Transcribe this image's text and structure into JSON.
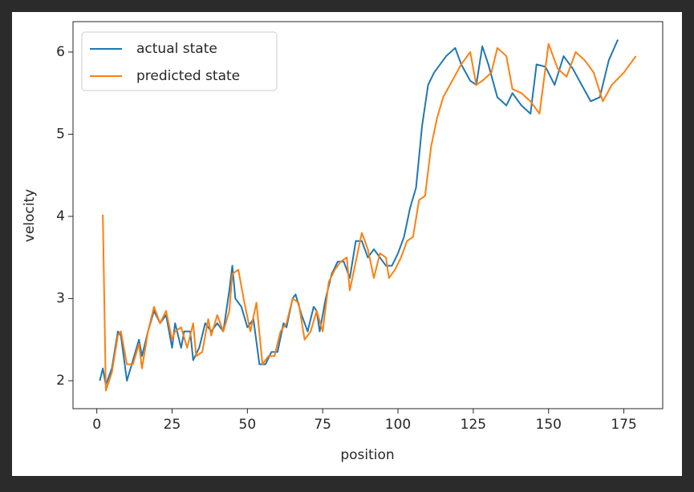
{
  "chart_data": {
    "type": "line",
    "x_label": "position",
    "y_label": "velocity",
    "xlim": [
      -7.9,
      187.9
    ],
    "xticks": [
      0,
      25,
      50,
      75,
      100,
      125,
      150,
      175
    ],
    "ylim": [
      1.66,
      6.37
    ],
    "yticks": [
      2,
      3,
      4,
      5,
      6
    ],
    "grid": false,
    "legend": "upper-left",
    "series": [
      {
        "name": "actual state",
        "color": "#1f77b4",
        "x": [
          1,
          2,
          3,
          5,
          7,
          8,
          10,
          12,
          14,
          15,
          17,
          19,
          21,
          23,
          25,
          26,
          28,
          29,
          31,
          32,
          34,
          36,
          38,
          40,
          42,
          44,
          45,
          46,
          48,
          50,
          52,
          54,
          56,
          58,
          60,
          62,
          63,
          65,
          66,
          68,
          70,
          72,
          73,
          74,
          76,
          78,
          80,
          82,
          84,
          86,
          88,
          90,
          92,
          94,
          96,
          98,
          100,
          102,
          104,
          106,
          108,
          110,
          112,
          114,
          116,
          119,
          121,
          124,
          126,
          128,
          130,
          133,
          136,
          138,
          141,
          144,
          146,
          149,
          152,
          155,
          158,
          161,
          164,
          167,
          170,
          173
        ],
        "values": [
          2.0,
          2.15,
          1.95,
          2.15,
          2.6,
          2.55,
          2.0,
          2.25,
          2.5,
          2.3,
          2.6,
          2.85,
          2.7,
          2.8,
          2.4,
          2.7,
          2.4,
          2.6,
          2.6,
          2.25,
          2.4,
          2.7,
          2.6,
          2.7,
          2.6,
          3.1,
          3.4,
          3.0,
          2.9,
          2.65,
          2.75,
          2.2,
          2.2,
          2.35,
          2.35,
          2.7,
          2.65,
          3.0,
          3.05,
          2.8,
          2.6,
          2.9,
          2.85,
          2.6,
          3.0,
          3.3,
          3.45,
          3.45,
          3.25,
          3.7,
          3.7,
          3.5,
          3.6,
          3.5,
          3.4,
          3.4,
          3.55,
          3.75,
          4.1,
          4.35,
          5.1,
          5.6,
          5.75,
          5.85,
          5.95,
          6.05,
          5.85,
          5.65,
          5.6,
          6.07,
          5.85,
          5.45,
          5.35,
          5.5,
          5.35,
          5.25,
          5.85,
          5.82,
          5.6,
          5.95,
          5.8,
          5.6,
          5.4,
          5.45,
          5.9,
          6.15
        ]
      },
      {
        "name": "predicted state",
        "color": "#ff7f0e",
        "x": [
          2,
          3,
          5,
          7,
          8,
          10,
          12,
          14,
          15,
          17,
          19,
          21,
          23,
          25,
          26,
          28,
          30,
          32,
          33,
          35,
          37,
          38,
          40,
          42,
          44,
          45,
          47,
          49,
          51,
          53,
          55,
          57,
          59,
          61,
          63,
          65,
          67,
          69,
          71,
          73,
          75,
          77,
          79,
          81,
          83,
          84,
          86,
          88,
          90,
          92,
          94,
          96,
          97,
          99,
          101,
          103,
          105,
          107,
          109,
          111,
          113,
          115,
          118,
          121,
          124,
          126,
          128,
          131,
          133,
          136,
          138,
          141,
          144,
          147,
          150,
          153,
          156,
          159,
          162,
          165,
          168,
          171,
          175,
          179
        ],
        "values": [
          4.02,
          1.88,
          2.1,
          2.55,
          2.6,
          2.2,
          2.2,
          2.45,
          2.15,
          2.6,
          2.9,
          2.7,
          2.85,
          2.5,
          2.6,
          2.65,
          2.4,
          2.7,
          2.3,
          2.35,
          2.75,
          2.55,
          2.8,
          2.6,
          2.85,
          3.3,
          3.35,
          2.95,
          2.6,
          2.95,
          2.2,
          2.3,
          2.3,
          2.6,
          2.7,
          3.0,
          2.95,
          2.5,
          2.6,
          2.85,
          2.6,
          3.2,
          3.35,
          3.45,
          3.5,
          3.1,
          3.45,
          3.8,
          3.6,
          3.25,
          3.55,
          3.5,
          3.25,
          3.35,
          3.5,
          3.7,
          3.75,
          4.2,
          4.25,
          4.85,
          5.2,
          5.45,
          5.65,
          5.85,
          6.0,
          5.6,
          5.65,
          5.75,
          6.05,
          5.95,
          5.55,
          5.5,
          5.4,
          5.25,
          6.1,
          5.8,
          5.7,
          6.0,
          5.9,
          5.75,
          5.4,
          5.6,
          5.75,
          5.95
        ]
      }
    ]
  }
}
